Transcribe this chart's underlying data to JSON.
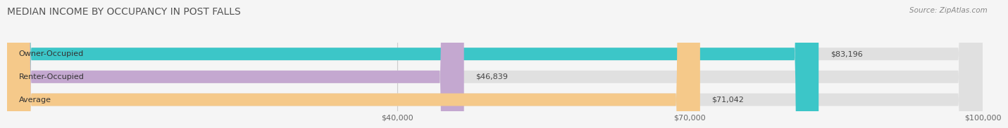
{
  "title": "MEDIAN INCOME BY OCCUPANCY IN POST FALLS",
  "source": "Source: ZipAtlas.com",
  "categories": [
    "Owner-Occupied",
    "Renter-Occupied",
    "Average"
  ],
  "values": [
    83196,
    46839,
    71042
  ],
  "labels": [
    "$83,196",
    "$46,839",
    "$71,042"
  ],
  "bar_colors": [
    "#3cc6c8",
    "#c4a8d0",
    "#f5c98a"
  ],
  "xlim": [
    0,
    100000
  ],
  "xticks": [
    40000,
    70000,
    100000
  ],
  "xticklabels": [
    "$40,000",
    "$70,000",
    "$100,000"
  ],
  "title_fontsize": 10,
  "source_fontsize": 7.5,
  "label_fontsize": 8,
  "category_fontsize": 8,
  "value_label_fontsize": 8,
  "bar_height": 0.55,
  "background_color": "#f5f5f5"
}
